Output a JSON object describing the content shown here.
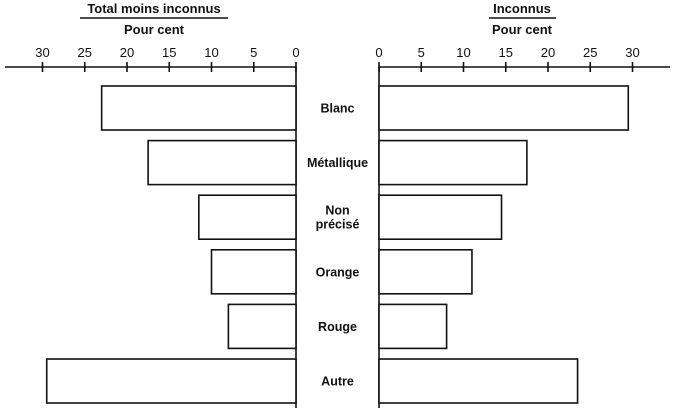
{
  "chart_data": [
    {
      "type": "bar",
      "orientation": "horizontal",
      "title": "Total moins inconnus",
      "subtitle": "Pour cent",
      "direction": "reversed",
      "categories": [
        "Blanc",
        "Métallique",
        "Non précisé",
        "Orange",
        "Rouge",
        "Autre"
      ],
      "values": [
        23,
        17.5,
        11.5,
        10,
        8,
        29.5
      ],
      "xlim": [
        0,
        30
      ],
      "xticks": [
        30,
        25,
        20,
        15,
        10,
        5,
        0
      ],
      "grid": false
    },
    {
      "type": "bar",
      "orientation": "horizontal",
      "title": "Inconnus",
      "subtitle": "Pour cent",
      "direction": "normal",
      "categories": [
        "Blanc",
        "Métallique",
        "Non précisé",
        "Orange",
        "Rouge",
        "Autre"
      ],
      "values": [
        29.5,
        17.5,
        14.5,
        11,
        8,
        23.5
      ],
      "xlim": [
        0,
        30
      ],
      "xticks": [
        0,
        5,
        10,
        15,
        20,
        25,
        30
      ],
      "grid": false
    }
  ],
  "category_lines": [
    [
      "Blanc"
    ],
    [
      "Métallique"
    ],
    [
      "Non",
      "précisé"
    ],
    [
      "Orange"
    ],
    [
      "Rouge"
    ],
    [
      "Autre"
    ]
  ],
  "colors": {
    "ink": "#111111",
    "bar_fill": "#ffffff",
    "background": "#ffffff"
  }
}
